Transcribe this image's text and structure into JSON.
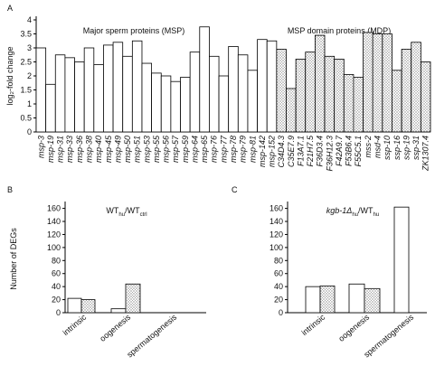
{
  "chart_data": [
    {
      "type": "bar",
      "panel": "A",
      "ylabel": "log₂-fold change",
      "annotations": [
        "Major sperm proteins (MSP)",
        "MSP domain proteins (MDP)"
      ],
      "categories": [
        "msp-3",
        "msp-19",
        "msp-31",
        "msp-33",
        "msp-36",
        "msp-38",
        "msp-40",
        "msp-45",
        "msp-49",
        "msp-50",
        "msp-51",
        "msp-53",
        "msp-55",
        "msp-56",
        "msp-57",
        "msp-59",
        "msp-64",
        "msp-65",
        "msp-76",
        "msp-77",
        "msp-78",
        "msp-79",
        "msp-81",
        "msp-142",
        "msp-152",
        "C34D4.3",
        "C35E7.9",
        "F13A7.1",
        "F21H7.5",
        "F36D3.4",
        "F36H12.3",
        "F42A9.7",
        "F53B6.4",
        "F55C5.1",
        "mss-2",
        "msd-4",
        "ssp-10",
        "ssp-16",
        "ssp-19",
        "ssp-31",
        "ZK1307.4"
      ],
      "values": [
        3.0,
        1.7,
        2.75,
        2.65,
        2.5,
        3.0,
        2.4,
        3.1,
        3.2,
        2.7,
        3.25,
        2.45,
        2.1,
        2.0,
        1.8,
        1.95,
        2.85,
        3.75,
        2.7,
        2.0,
        3.05,
        2.75,
        2.2,
        3.3,
        3.25,
        2.95,
        1.55,
        2.6,
        2.85,
        3.45,
        2.7,
        2.6,
        2.05,
        1.95,
        3.55,
        3.5,
        3.5,
        2.2,
        2.95,
        3.2,
        2.5
      ],
      "bar_patterns": [
        "none",
        "none",
        "none",
        "none",
        "none",
        "none",
        "none",
        "none",
        "none",
        "none",
        "none",
        "none",
        "none",
        "none",
        "none",
        "none",
        "none",
        "none",
        "none",
        "none",
        "none",
        "none",
        "none",
        "none",
        "none",
        "dots",
        "dots",
        "dots",
        "dots",
        "dots",
        "dots",
        "dots",
        "dots",
        "dots",
        "dots",
        "dots",
        "dots",
        "dots",
        "dots",
        "dots",
        "dots"
      ],
      "color": "#ffffff",
      "ylim": [
        0,
        4
      ],
      "yticks": [
        0,
        0.5,
        1,
        1.5,
        2,
        2.5,
        3,
        3.5,
        4
      ]
    },
    {
      "type": "bar",
      "panel": "B",
      "title": [
        "WT",
        "hu",
        "/WT",
        "ctrl"
      ],
      "ylabel": "Number of DEGs",
      "categories": [
        "intrinsic",
        "oogenesis",
        "spermatogenesis"
      ],
      "series": [
        {
          "color": "#ffffff",
          "pattern": "none",
          "values": [
            22,
            6,
            0
          ]
        },
        {
          "color": "#ffffff",
          "pattern": "dots",
          "values": [
            20,
            44,
            0
          ]
        }
      ],
      "ylim": [
        0,
        165
      ],
      "yticks": [
        0,
        20,
        40,
        60,
        80,
        100,
        120,
        140,
        160
      ]
    },
    {
      "type": "bar",
      "panel": "C",
      "title": [
        "kgb-1Δ",
        "hu",
        "/WT",
        "hu"
      ],
      "categories": [
        "intrinsic",
        "oogenesis",
        "spermatogenesis"
      ],
      "series": [
        {
          "color": "#ffffff",
          "pattern": "none",
          "values": [
            40,
            44,
            162
          ]
        },
        {
          "color": "#ffffff",
          "pattern": "dots",
          "values": [
            41,
            37,
            0
          ]
        }
      ],
      "ylim": [
        0,
        165
      ],
      "yticks": [
        0,
        20,
        40,
        60,
        80,
        100,
        120,
        140,
        160
      ]
    }
  ]
}
